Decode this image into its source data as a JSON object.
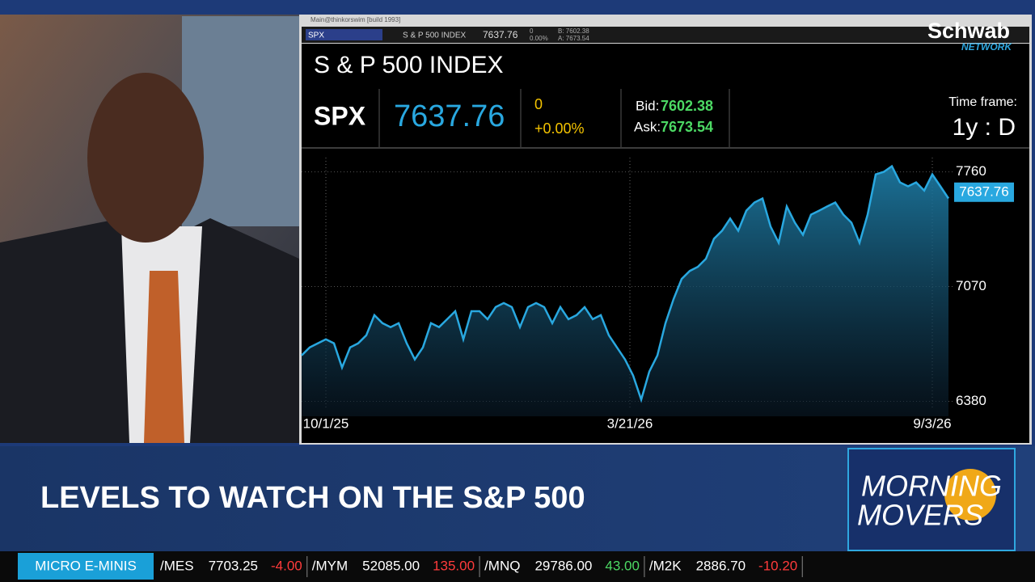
{
  "window_title": "Main@thinkorswim [build 1993]",
  "logo": {
    "brand": "Schwab",
    "sub": "NETWORK"
  },
  "toolbar": {
    "symbol": "SPX",
    "name": "S & P 500 INDEX",
    "last": "7637.76",
    "change": "0",
    "percent": "0.00%",
    "bid": "B: 7602.38",
    "ask": "A: 7673.54"
  },
  "header": {
    "title": "S & P 500 INDEX",
    "symbol": "SPX",
    "last": "7637.76",
    "change": "0",
    "percent": "+0.00%",
    "bid_label": "Bid:",
    "bid": "7602.38",
    "ask_label": "Ask:",
    "ask": "7673.54",
    "timeframe_label": "Time frame:",
    "timeframe": "1y : D"
  },
  "chart_data": {
    "type": "area",
    "color": "#29a8e0",
    "x": [
      0,
      1,
      2,
      3,
      4,
      5,
      6,
      7,
      8,
      9,
      10,
      11,
      12,
      13,
      14,
      15,
      16,
      17,
      18,
      19,
      20,
      21,
      22,
      23,
      24,
      25,
      26,
      27,
      28,
      29,
      30,
      31,
      32,
      33,
      34,
      35,
      36,
      37,
      38,
      39,
      40,
      41,
      42,
      43,
      44,
      45,
      46,
      47,
      48,
      49,
      50,
      51,
      52,
      53,
      54,
      55,
      56,
      57,
      58,
      59,
      60,
      61,
      62,
      63,
      64,
      65,
      66,
      67,
      68,
      69,
      70,
      71,
      72,
      73,
      74,
      75,
      76,
      77,
      78,
      79,
      80
    ],
    "values": [
      6656,
      6704,
      6729,
      6753,
      6729,
      6583,
      6704,
      6729,
      6777,
      6898,
      6850,
      6826,
      6850,
      6729,
      6632,
      6704,
      6850,
      6826,
      6874,
      6922,
      6753,
      6922,
      6922,
      6874,
      6947,
      6971,
      6947,
      6826,
      6947,
      6971,
      6947,
      6850,
      6947,
      6874,
      6898,
      6947,
      6874,
      6898,
      6777,
      6704,
      6632,
      6535,
      6390,
      6559,
      6656,
      6850,
      6995,
      7116,
      7164,
      7189,
      7237,
      7358,
      7406,
      7479,
      7406,
      7527,
      7576,
      7600,
      7431,
      7334,
      7552,
      7455,
      7382,
      7503,
      7527,
      7552,
      7576,
      7503,
      7455,
      7334,
      7503,
      7745,
      7760,
      7794,
      7697,
      7673,
      7697,
      7648,
      7745,
      7673,
      7600
    ],
    "xlim": [
      0,
      80.5
    ],
    "ylim": [
      6290,
      7870
    ],
    "xticks": [
      {
        "value": 3,
        "label": "10/1/25"
      },
      {
        "value": 40.6,
        "label": "3/21/26"
      },
      {
        "value": 78,
        "label": "9/3/26"
      }
    ],
    "yticks": [
      6380,
      7070,
      7760
    ],
    "last_value": 7637.76,
    "last_label": "7637.76"
  },
  "lower_third": {
    "headline": "LEVELS TO WATCH ON THE S&P 500",
    "show_line1": "MORNING",
    "show_line2": "MOVERS"
  },
  "ticker": {
    "label": "MICRO E-MINIS",
    "items": [
      {
        "symbol": "/MES",
        "price": "7703.25",
        "change": "-4.00",
        "color": "#ff3b3b"
      },
      {
        "symbol": "/MYM",
        "price": "52085.00",
        "change": "135.00",
        "color": "#ff3b3b"
      },
      {
        "symbol": "/MNQ",
        "price": "29786.00",
        "change": "43.00",
        "color": "#4cd964"
      },
      {
        "symbol": "/M2K",
        "price": "2886.70",
        "change": "-10.20",
        "color": "#ff3b3b"
      }
    ]
  }
}
